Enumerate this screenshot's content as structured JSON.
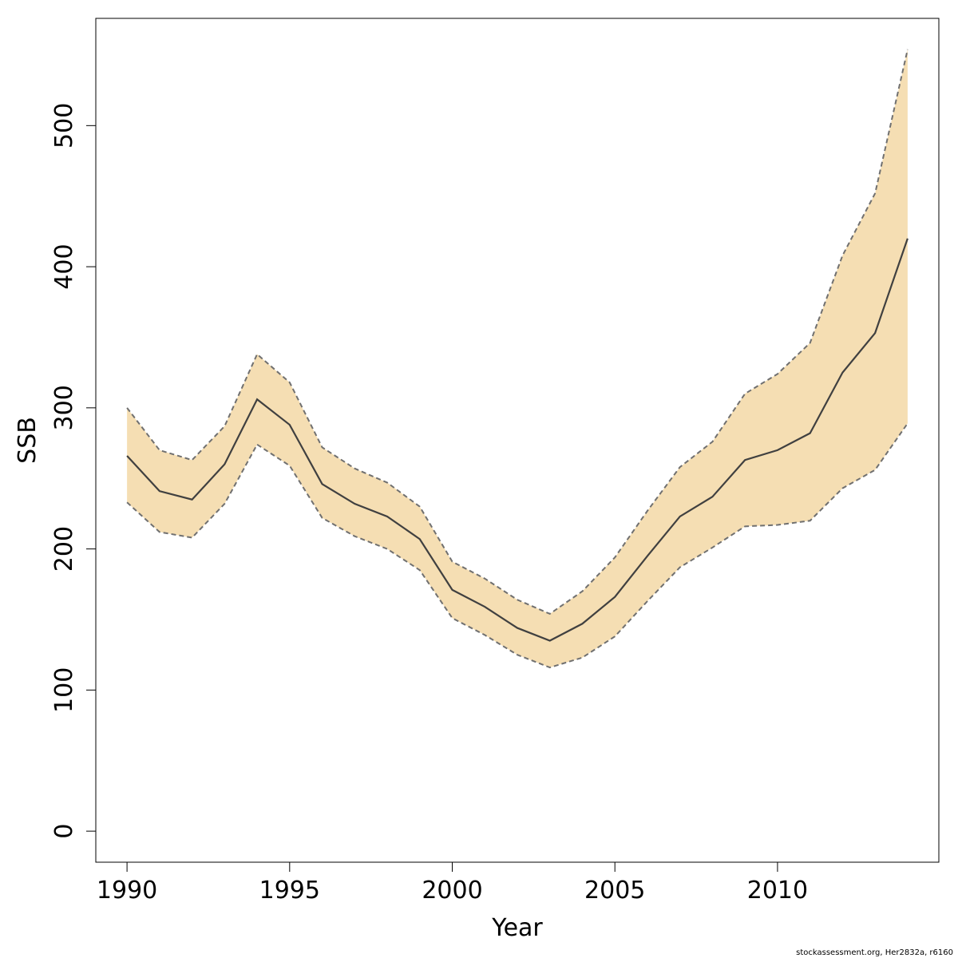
{
  "chart_data": {
    "type": "area",
    "xlabel": "Year",
    "ylabel": "SSB",
    "xlim": [
      1989.04,
      2014.96
    ],
    "ylim": [
      -22,
      576
    ],
    "x_ticks": [
      1990,
      1995,
      2000,
      2005,
      2010
    ],
    "y_ticks": [
      0,
      100,
      200,
      300,
      400,
      500
    ],
    "grid": false,
    "legend": "none",
    "band_color": "#f5deb3",
    "line_color": "#404040",
    "bound_color": "#707070",
    "x": [
      1990,
      1991,
      1992,
      1993,
      1994,
      1995,
      1996,
      1997,
      1998,
      1999,
      2000,
      2001,
      2002,
      2003,
      2004,
      2005,
      2006,
      2007,
      2008,
      2009,
      2010,
      2011,
      2012,
      2013,
      2014
    ],
    "series": [
      {
        "values": [
          266,
          241,
          235,
          260,
          306,
          288,
          246,
          232,
          223,
          207,
          171,
          159,
          144,
          135,
          147,
          166,
          195,
          223,
          237,
          263,
          270,
          282,
          325,
          353,
          420
        ]
      },
      {
        "values": [
          300,
          270,
          263,
          287,
          338,
          318,
          272,
          257,
          247,
          230,
          191,
          179,
          164,
          154,
          170,
          194,
          227,
          258,
          276,
          310,
          324,
          346,
          408,
          452,
          554
        ]
      },
      {
        "values": [
          233,
          212,
          208,
          232,
          274,
          259,
          222,
          209,
          200,
          185,
          151,
          139,
          125,
          116,
          123,
          138,
          163,
          187,
          201,
          216,
          217,
          220,
          243,
          256,
          289
        ]
      }
    ],
    "footer": "stockassessment.org, Her2832a, r6160"
  }
}
